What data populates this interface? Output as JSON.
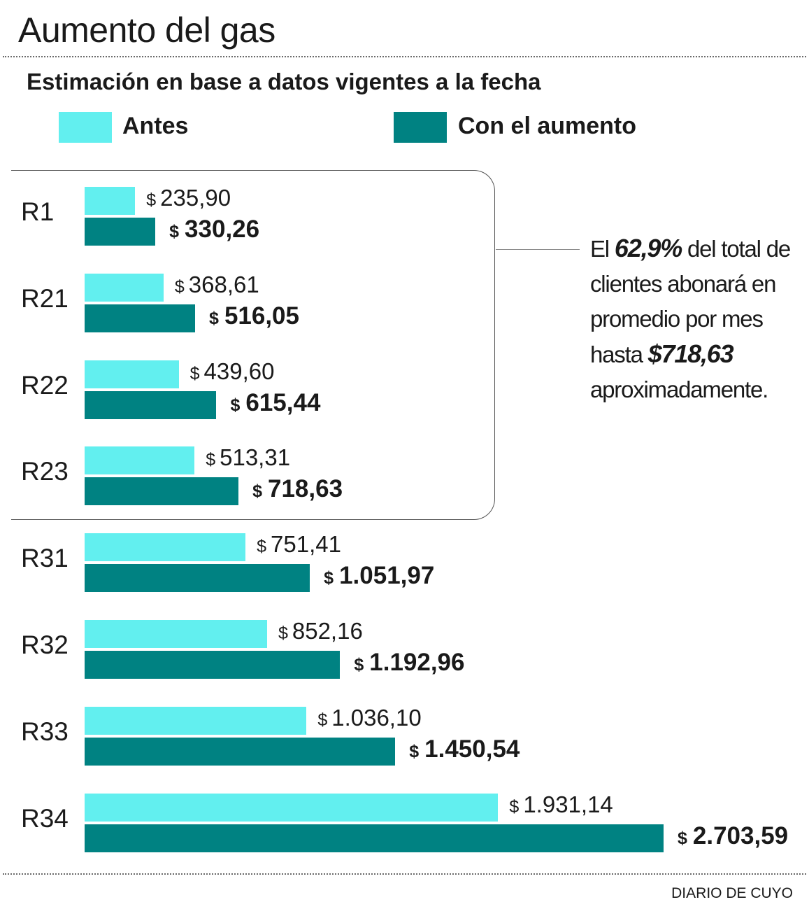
{
  "title": "Aumento del gas",
  "subtitle": "Estimación en base a datos vigentes a la fecha",
  "colors": {
    "antes": "#62efef",
    "con_aumento": "#008282"
  },
  "legend": {
    "antes": "Antes",
    "con_aumento": "Con el aumento"
  },
  "note": {
    "part1": "El ",
    "highlight1": "62,9%",
    "part2": " del total de clientes abonará en promedio por mes hasta ",
    "highlight2": "$718,63",
    "part3": " aproximadamente."
  },
  "currency": "$",
  "source": "DIARIO DE CUYO",
  "chart_data": {
    "type": "bar",
    "orientation": "horizontal",
    "title": "Aumento del gas",
    "subtitle": "Estimación en base a datos vigentes a la fecha",
    "categories": [
      "R1",
      "R21",
      "R22",
      "R23",
      "R31",
      "R32",
      "R33",
      "R34"
    ],
    "series": [
      {
        "name": "Antes",
        "values": [
          235.9,
          368.61,
          439.6,
          513.31,
          751.41,
          852.16,
          1036.1,
          1931.14
        ],
        "labels": [
          "235,90",
          "368,61",
          "439,60",
          "513,31",
          "751,41",
          "852,16",
          "1.036,10",
          "1.931,14"
        ]
      },
      {
        "name": "Con el aumento",
        "values": [
          330.26,
          516.05,
          615.44,
          718.63,
          1051.97,
          1192.96,
          1450.54,
          2703.59
        ],
        "labels": [
          "330,26",
          "516,05",
          "615,44",
          "718,63",
          "1.051,97",
          "1.192,96",
          "1.450,54",
          "2.703,59"
        ]
      }
    ],
    "xlim": [
      0,
      2703.59
    ],
    "legend": "top",
    "grid": false,
    "bracketed_categories": [
      "R1",
      "R21",
      "R22",
      "R23"
    ]
  }
}
